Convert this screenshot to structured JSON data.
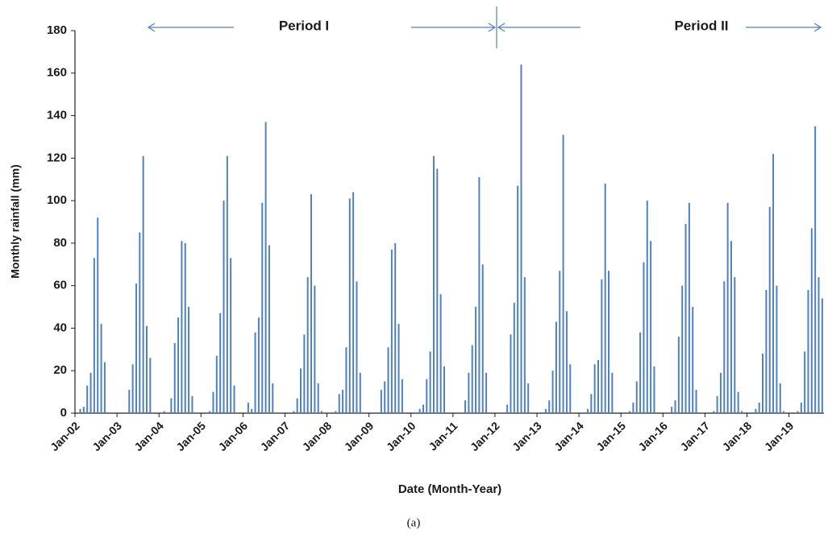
{
  "chart_data": {
    "type": "bar",
    "y_label": "Monthly rainfall (mm)",
    "x_label": "Date (Month-Year)",
    "annotations": [
      "Period I",
      "Period II"
    ],
    "caption": "(a)",
    "color": "#4f81bd",
    "ylim": [
      0,
      180
    ],
    "yticks": [
      0,
      20,
      40,
      60,
      80,
      100,
      120,
      140,
      160,
      180
    ],
    "categories": [
      "Jan-02",
      null,
      null,
      null,
      null,
      null,
      null,
      null,
      null,
      null,
      null,
      null,
      "Jan-03",
      null,
      null,
      null,
      null,
      null,
      null,
      null,
      null,
      null,
      null,
      null,
      "Jan-04",
      null,
      null,
      null,
      null,
      null,
      null,
      null,
      null,
      null,
      null,
      null,
      "Jan-05",
      null,
      null,
      null,
      null,
      null,
      null,
      null,
      null,
      null,
      null,
      null,
      "Jan-06",
      null,
      null,
      null,
      null,
      null,
      null,
      null,
      null,
      null,
      null,
      null,
      "Jan-07",
      null,
      null,
      null,
      null,
      null,
      null,
      null,
      null,
      null,
      null,
      null,
      "Jan-08",
      null,
      null,
      null,
      null,
      null,
      null,
      null,
      null,
      null,
      null,
      null,
      "Jan-09",
      null,
      null,
      null,
      null,
      null,
      null,
      null,
      null,
      null,
      null,
      null,
      "Jan-10",
      null,
      null,
      null,
      null,
      null,
      null,
      null,
      null,
      null,
      null,
      null,
      "Jan-11",
      null,
      null,
      null,
      null,
      null,
      null,
      null,
      null,
      null,
      null,
      null,
      "Jan-12",
      null,
      null,
      null,
      null,
      null,
      null,
      null,
      null,
      null,
      null,
      null,
      "Jan-13",
      null,
      null,
      null,
      null,
      null,
      null,
      null,
      null,
      null,
      null,
      null,
      "Jan-14",
      null,
      null,
      null,
      null,
      null,
      null,
      null,
      null,
      null,
      null,
      null,
      "Jan-15",
      null,
      null,
      null,
      null,
      null,
      null,
      null,
      null,
      null,
      null,
      null,
      "Jan-16",
      null,
      null,
      null,
      null,
      null,
      null,
      null,
      null,
      null,
      null,
      null,
      "Jan-17",
      null,
      null,
      null,
      null,
      null,
      null,
      null,
      null,
      null,
      null,
      null,
      "Jan-18",
      null,
      null,
      null,
      null,
      null,
      null,
      null,
      null,
      null,
      null,
      null,
      "Jan-19",
      null,
      null,
      null,
      null,
      null,
      null,
      null,
      null,
      null
    ],
    "values": [
      0,
      2,
      3,
      13,
      19,
      73,
      92,
      42,
      24,
      0,
      0,
      0,
      0,
      0,
      0,
      11,
      23,
      61,
      85,
      121,
      41,
      26,
      0,
      0,
      0,
      1,
      0,
      7,
      33,
      45,
      81,
      80,
      50,
      8,
      0,
      0,
      0,
      0,
      1,
      10,
      27,
      47,
      100,
      121,
      73,
      13,
      0,
      0,
      0,
      5,
      2,
      38,
      45,
      99,
      137,
      79,
      14,
      0,
      0,
      0,
      0,
      0,
      1,
      7,
      21,
      37,
      64,
      103,
      60,
      14,
      1,
      0,
      0,
      0,
      1,
      9,
      11,
      31,
      101,
      104,
      62,
      19,
      0,
      0,
      0,
      0,
      0,
      11,
      15,
      31,
      77,
      80,
      42,
      16,
      0,
      0,
      0,
      0,
      2,
      4,
      16,
      29,
      121,
      115,
      56,
      22,
      0,
      0,
      0,
      0,
      0,
      6,
      19,
      32,
      50,
      111,
      70,
      19,
      0,
      0,
      0,
      0,
      0,
      4,
      37,
      52,
      107,
      164,
      64,
      14,
      0,
      0,
      0,
      0,
      2,
      6,
      20,
      43,
      67,
      131,
      48,
      23,
      0,
      0,
      0,
      0,
      2,
      9,
      23,
      25,
      63,
      108,
      67,
      19,
      0,
      0,
      0,
      0,
      1,
      5,
      15,
      38,
      71,
      100,
      81,
      22,
      0,
      0,
      0,
      0,
      3,
      6,
      36,
      60,
      89,
      99,
      50,
      11,
      0,
      0,
      0,
      0,
      1,
      8,
      19,
      62,
      99,
      81,
      64,
      10,
      1,
      0,
      0,
      0,
      2,
      5,
      28,
      58,
      97,
      122,
      60,
      14,
      1,
      0,
      0,
      0,
      1,
      5,
      29,
      58,
      87,
      135,
      64,
      54
    ]
  }
}
